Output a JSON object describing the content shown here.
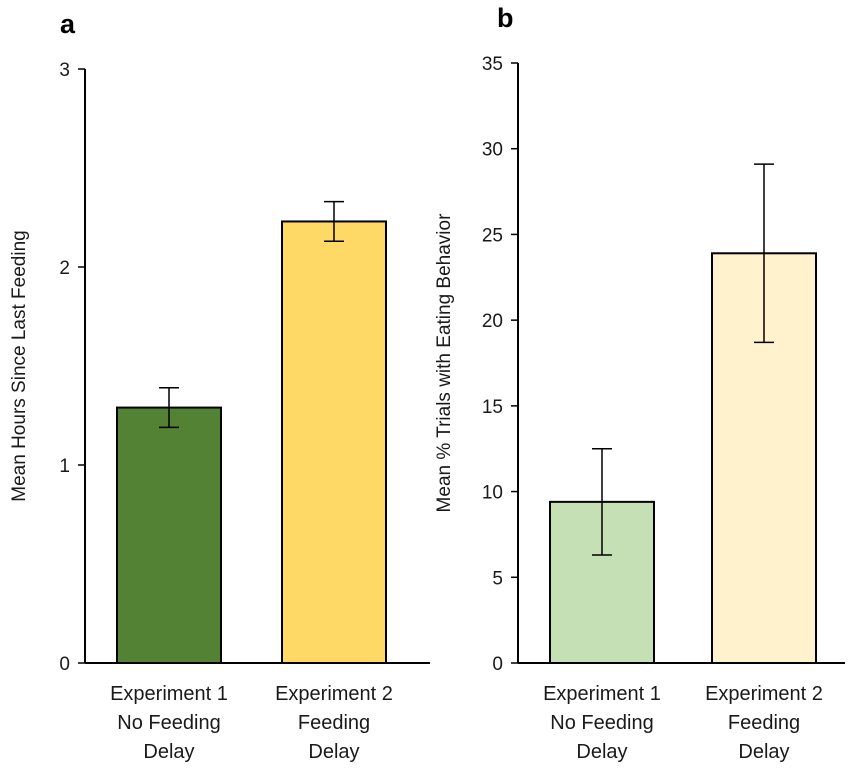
{
  "chart_data": [
    {
      "type": "bar",
      "panel_label": "a",
      "title": "",
      "xlabel": "",
      "ylabel": "Mean Hours Since Last Feeding",
      "ylim": [
        0,
        3
      ],
      "yticks": [
        "0",
        "1",
        "2",
        "3"
      ],
      "categories": [
        [
          "Experiment 1",
          "No Feeding",
          "Delay"
        ],
        [
          "Experiment 2",
          "Feeding",
          "Delay"
        ]
      ],
      "values": [
        1.29,
        2.23
      ],
      "error": [
        0.1,
        0.1
      ],
      "colors": [
        "#548235",
        "#ffd966"
      ],
      "grid": false,
      "legend": "none"
    },
    {
      "type": "bar",
      "panel_label": "b",
      "title": "",
      "xlabel": "",
      "ylabel": "Mean % Trials with Eating Behavior",
      "ylim": [
        0,
        35
      ],
      "yticks": [
        "0",
        "5",
        "10",
        "15",
        "20",
        "25",
        "30",
        "35"
      ],
      "categories": [
        [
          "Experiment 1",
          "No Feeding",
          "Delay"
        ],
        [
          "Experiment 2",
          "Feeding",
          "Delay"
        ]
      ],
      "values": [
        9.4,
        23.9
      ],
      "error": [
        3.1,
        5.2
      ],
      "colors": [
        "#c5e0b4",
        "#fff2cc"
      ],
      "grid": false,
      "legend": "none"
    }
  ]
}
